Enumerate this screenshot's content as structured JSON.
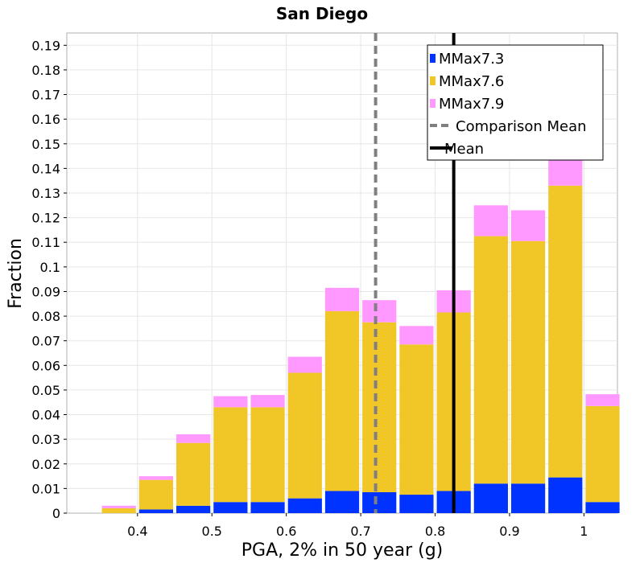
{
  "chart_data": {
    "type": "bar",
    "stacked": true,
    "title": "San Diego",
    "xlabel": "PGA, 2% in 50 year (g)",
    "ylabel": "Fraction",
    "xlim": [
      0.305,
      1.045
    ],
    "ylim": [
      0,
      0.195
    ],
    "bin_width": 0.05,
    "x_ticks": [
      0.4,
      0.5,
      0.6,
      0.7,
      0.8,
      0.9,
      1.0
    ],
    "x_tick_labels": [
      "0.4",
      "0.5",
      "0.6",
      "0.7",
      "0.8",
      "0.9",
      "1"
    ],
    "y_ticks": [
      0,
      0.01,
      0.02,
      0.03,
      0.04,
      0.05,
      0.06,
      0.07,
      0.08,
      0.09,
      0.1,
      0.11,
      0.12,
      0.13,
      0.14,
      0.15,
      0.16,
      0.17,
      0.18,
      0.19
    ],
    "y_tick_labels": [
      "0",
      "0.01",
      "0.02",
      "0.03",
      "0.04",
      "0.05",
      "0.06",
      "0.07",
      "0.08",
      "0.09",
      "0.1",
      "0.11",
      "0.12",
      "0.13",
      "0.14",
      "0.15",
      "0.16",
      "0.17",
      "0.18",
      "0.19"
    ],
    "bin_centers": [
      0.325,
      0.375,
      0.425,
      0.475,
      0.525,
      0.575,
      0.625,
      0.675,
      0.725,
      0.775,
      0.825,
      0.875,
      0.925,
      0.975,
      1.025
    ],
    "series": [
      {
        "name": "MMax7.3",
        "color": "#0033ff",
        "values": [
          0,
          0,
          0.0015,
          0.003,
          0.0045,
          0.0045,
          0.006,
          0.009,
          0.0085,
          0.0075,
          0.009,
          0.012,
          0.012,
          0.0145,
          0.0045
        ]
      },
      {
        "name": "MMax7.6",
        "color": "#f0c726",
        "values": [
          0,
          0.002,
          0.012,
          0.0255,
          0.0385,
          0.0385,
          0.051,
          0.073,
          0.069,
          0.061,
          0.0725,
          0.1005,
          0.0985,
          0.1185,
          0.039
        ]
      },
      {
        "name": "MMax7.9",
        "color": "#ff99ff",
        "values": [
          0,
          0.001,
          0.0015,
          0.0035,
          0.0045,
          0.005,
          0.0065,
          0.0095,
          0.009,
          0.0075,
          0.009,
          0.0125,
          0.0125,
          0.0148,
          0.0048
        ]
      }
    ],
    "reference_lines": [
      {
        "name": "Comparison Mean",
        "x": 0.72,
        "style": "dashed",
        "color": "#808080"
      },
      {
        "name": "Mean",
        "x": 0.825,
        "style": "solid",
        "color": "#000000"
      }
    ],
    "legend_position": "top-right",
    "grid": true
  }
}
